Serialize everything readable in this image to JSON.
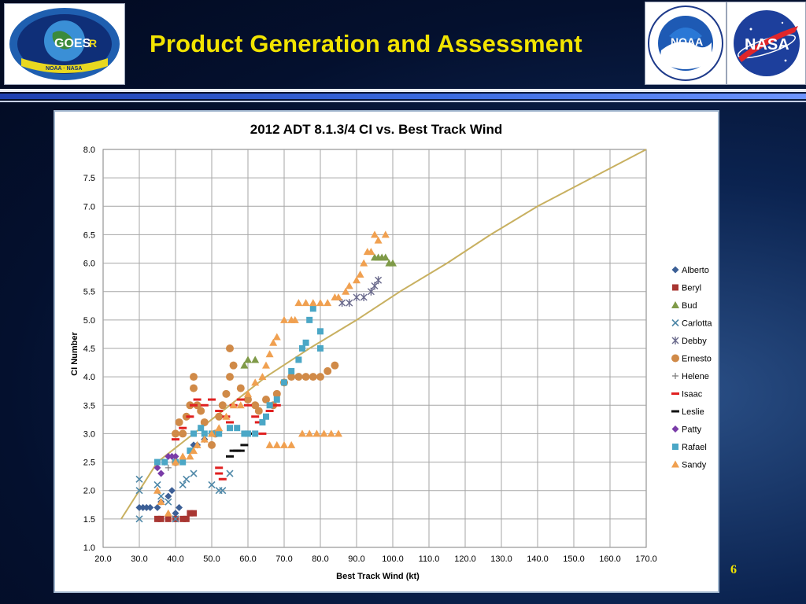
{
  "slide": {
    "title": "Product Generation and Assessment",
    "page_number": "6",
    "title_color": "#f2e400"
  },
  "logos": {
    "left": {
      "name": "goes-r-logo",
      "text_top": "GOES",
      "text_r": "R",
      "text_bottom": "NOAA · NASA"
    },
    "noaa": {
      "name": "noaa-logo",
      "text": "NOAA"
    },
    "nasa": {
      "name": "nasa-logo",
      "text": "NASA"
    }
  },
  "chart_data": {
    "type": "scatter",
    "title": "2012 ADT 8.1.3/4 CI vs. Best Track Wind",
    "xlabel": "Best Track Wind (kt)",
    "ylabel": "CI Number",
    "xlim": [
      20,
      170
    ],
    "ylim": [
      1,
      8
    ],
    "xticks": [
      "20.0",
      "30.0",
      "40.0",
      "50.0",
      "60.0",
      "70.0",
      "80.0",
      "90.0",
      "100.0",
      "110.0",
      "120.0",
      "130.0",
      "140.0",
      "150.0",
      "160.0",
      "170.0"
    ],
    "yticks": [
      "1.0",
      "1.5",
      "2.0",
      "2.5",
      "3.0",
      "3.5",
      "4.0",
      "4.5",
      "5.0",
      "5.5",
      "6.0",
      "6.5",
      "7.0",
      "7.5",
      "8.0"
    ],
    "grid": true,
    "legend_position": "right",
    "reference_curve": {
      "color": "#c8b060",
      "points": [
        [
          25,
          1.5
        ],
        [
          30,
          2.0
        ],
        [
          35,
          2.5
        ],
        [
          45,
          3.0
        ],
        [
          55,
          3.5
        ],
        [
          65,
          4.0
        ],
        [
          77,
          4.5
        ],
        [
          90,
          5.0
        ],
        [
          102,
          5.5
        ],
        [
          115,
          6.0
        ],
        [
          127,
          6.5
        ],
        [
          140,
          7.0
        ],
        [
          155,
          7.5
        ],
        [
          170,
          8.0
        ]
      ]
    },
    "series": [
      {
        "name": "Alberto",
        "marker": "diamond",
        "color": "#3c5f96",
        "points": [
          [
            30,
            1.7
          ],
          [
            31,
            1.7
          ],
          [
            32,
            1.7
          ],
          [
            33,
            1.7
          ],
          [
            35,
            1.7
          ],
          [
            36,
            1.8
          ],
          [
            38,
            1.9
          ],
          [
            39,
            2.0
          ],
          [
            40,
            1.6
          ],
          [
            41,
            1.7
          ],
          [
            45,
            2.8
          ],
          [
            46,
            2.8
          ],
          [
            48,
            2.9
          ],
          [
            50,
            3.0
          ]
        ]
      },
      {
        "name": "Beryl",
        "marker": "square",
        "color": "#a83632",
        "points": [
          [
            35,
            1.5
          ],
          [
            36,
            1.5
          ],
          [
            38,
            1.5
          ],
          [
            40,
            1.5
          ],
          [
            42,
            1.5
          ],
          [
            43,
            1.5
          ],
          [
            44,
            1.6
          ],
          [
            45,
            1.6
          ]
        ]
      },
      {
        "name": "Bud",
        "marker": "triangle",
        "color": "#7f9a48",
        "points": [
          [
            59,
            4.2
          ],
          [
            60,
            4.3
          ],
          [
            62,
            4.3
          ],
          [
            95,
            6.1
          ],
          [
            96,
            6.1
          ],
          [
            97,
            6.1
          ],
          [
            98,
            6.1
          ],
          [
            99,
            6.0
          ],
          [
            100,
            6.0
          ]
        ]
      },
      {
        "name": "Carlotta",
        "marker": "x",
        "color": "#4f88a8",
        "points": [
          [
            30,
            2.2
          ],
          [
            30,
            2.0
          ],
          [
            30,
            1.5
          ],
          [
            35,
            2.1
          ],
          [
            36,
            1.9
          ],
          [
            38,
            1.8
          ],
          [
            40,
            1.5
          ],
          [
            42,
            2.1
          ],
          [
            43,
            2.2
          ],
          [
            45,
            2.3
          ],
          [
            50,
            2.1
          ],
          [
            52,
            2.0
          ],
          [
            53,
            2.0
          ],
          [
            55,
            2.3
          ]
        ]
      },
      {
        "name": "Debby",
        "marker": "star",
        "color": "#6a6a8c",
        "points": [
          [
            86,
            5.3
          ],
          [
            88,
            5.3
          ],
          [
            90,
            5.4
          ],
          [
            92,
            5.4
          ],
          [
            94,
            5.5
          ],
          [
            95,
            5.6
          ],
          [
            96,
            5.7
          ]
        ]
      },
      {
        "name": "Ernesto",
        "marker": "circle",
        "color": "#d08a48",
        "points": [
          [
            40,
            2.5
          ],
          [
            40,
            3.0
          ],
          [
            41,
            3.2
          ],
          [
            42,
            3.0
          ],
          [
            43,
            3.3
          ],
          [
            44,
            3.5
          ],
          [
            45,
            3.8
          ],
          [
            45,
            4.0
          ],
          [
            46,
            3.5
          ],
          [
            47,
            3.4
          ],
          [
            48,
            3.2
          ],
          [
            50,
            2.8
          ],
          [
            51,
            3.0
          ],
          [
            52,
            3.3
          ],
          [
            53,
            3.5
          ],
          [
            54,
            3.7
          ],
          [
            55,
            4.0
          ],
          [
            55,
            4.5
          ],
          [
            56,
            4.2
          ],
          [
            58,
            3.8
          ],
          [
            60,
            3.6
          ],
          [
            62,
            3.5
          ],
          [
            63,
            3.4
          ],
          [
            65,
            3.6
          ],
          [
            67,
            3.5
          ],
          [
            68,
            3.7
          ],
          [
            70,
            3.9
          ],
          [
            72,
            4.0
          ],
          [
            74,
            4.0
          ],
          [
            76,
            4.0
          ],
          [
            78,
            4.0
          ],
          [
            80,
            4.0
          ],
          [
            82,
            4.1
          ],
          [
            84,
            4.2
          ]
        ]
      },
      {
        "name": "Helene",
        "marker": "plus",
        "color": "#7a7a7a",
        "points": [
          [
            36,
            2.3
          ],
          [
            38,
            2.4
          ],
          [
            40,
            2.5
          ]
        ]
      },
      {
        "name": "Isaac",
        "marker": "dash",
        "color": "#e02020",
        "points": [
          [
            40,
            2.9
          ],
          [
            42,
            3.1
          ],
          [
            44,
            3.3
          ],
          [
            45,
            3.5
          ],
          [
            46,
            3.6
          ],
          [
            48,
            3.5
          ],
          [
            50,
            3.6
          ],
          [
            52,
            3.4
          ],
          [
            54,
            3.3
          ],
          [
            55,
            3.2
          ],
          [
            56,
            3.5
          ],
          [
            58,
            3.6
          ],
          [
            60,
            3.5
          ],
          [
            62,
            3.3
          ],
          [
            63,
            3.2
          ],
          [
            64,
            3.0
          ],
          [
            66,
            3.4
          ],
          [
            68,
            3.5
          ],
          [
            52,
            2.4
          ],
          [
            53,
            2.2
          ],
          [
            52,
            2.3
          ]
        ]
      },
      {
        "name": "Leslie",
        "marker": "dash",
        "color": "#111111",
        "points": [
          [
            55,
            2.6
          ],
          [
            56,
            2.7
          ],
          [
            57,
            2.7
          ],
          [
            58,
            2.7
          ],
          [
            59,
            2.8
          ],
          [
            60,
            3.0
          ]
        ]
      },
      {
        "name": "Patty",
        "marker": "diamond",
        "color": "#7a3ca8",
        "points": [
          [
            35,
            2.4
          ],
          [
            36,
            2.3
          ],
          [
            37,
            2.5
          ],
          [
            38,
            2.6
          ],
          [
            39,
            2.6
          ],
          [
            40,
            2.6
          ]
        ]
      },
      {
        "name": "Rafael",
        "marker": "square",
        "color": "#4ba7c6",
        "points": [
          [
            35,
            2.5
          ],
          [
            37,
            2.5
          ],
          [
            40,
            2.5
          ],
          [
            42,
            2.5
          ],
          [
            44,
            2.7
          ],
          [
            45,
            3.0
          ],
          [
            47,
            3.1
          ],
          [
            48,
            3.0
          ],
          [
            50,
            3.0
          ],
          [
            52,
            3.0
          ],
          [
            55,
            3.1
          ],
          [
            57,
            3.1
          ],
          [
            59,
            3.0
          ],
          [
            60,
            3.0
          ],
          [
            62,
            3.0
          ],
          [
            64,
            3.2
          ],
          [
            65,
            3.3
          ],
          [
            66,
            3.5
          ],
          [
            68,
            3.6
          ],
          [
            70,
            3.9
          ],
          [
            72,
            4.1
          ],
          [
            74,
            4.3
          ],
          [
            75,
            4.5
          ],
          [
            76,
            4.6
          ],
          [
            77,
            5.0
          ],
          [
            78,
            5.2
          ],
          [
            80,
            4.8
          ],
          [
            80,
            4.5
          ]
        ]
      },
      {
        "name": "Sandy",
        "marker": "triangle",
        "color": "#f0a050",
        "points": [
          [
            35,
            2.0
          ],
          [
            36,
            1.8
          ],
          [
            38,
            1.6
          ],
          [
            40,
            2.5
          ],
          [
            42,
            2.6
          ],
          [
            44,
            2.6
          ],
          [
            45,
            2.7
          ],
          [
            46,
            2.8
          ],
          [
            48,
            2.9
          ],
          [
            50,
            3.0
          ],
          [
            52,
            3.1
          ],
          [
            54,
            3.3
          ],
          [
            56,
            3.5
          ],
          [
            58,
            3.5
          ],
          [
            60,
            3.7
          ],
          [
            62,
            3.9
          ],
          [
            64,
            4.0
          ],
          [
            65,
            4.2
          ],
          [
            66,
            4.4
          ],
          [
            67,
            4.6
          ],
          [
            68,
            4.7
          ],
          [
            70,
            5.0
          ],
          [
            72,
            5.0
          ],
          [
            73,
            5.0
          ],
          [
            74,
            5.3
          ],
          [
            76,
            5.3
          ],
          [
            78,
            5.3
          ],
          [
            80,
            5.3
          ],
          [
            82,
            5.3
          ],
          [
            84,
            5.4
          ],
          [
            85,
            5.4
          ],
          [
            87,
            5.5
          ],
          [
            88,
            5.6
          ],
          [
            90,
            5.7
          ],
          [
            91,
            5.8
          ],
          [
            92,
            6.0
          ],
          [
            93,
            6.2
          ],
          [
            94,
            6.2
          ],
          [
            95,
            6.5
          ],
          [
            96,
            6.4
          ],
          [
            98,
            6.5
          ],
          [
            66,
            2.8
          ],
          [
            68,
            2.8
          ],
          [
            70,
            2.8
          ],
          [
            72,
            2.8
          ],
          [
            75,
            3.0
          ],
          [
            77,
            3.0
          ],
          [
            79,
            3.0
          ],
          [
            81,
            3.0
          ],
          [
            83,
            3.0
          ],
          [
            85,
            3.0
          ]
        ]
      }
    ]
  }
}
